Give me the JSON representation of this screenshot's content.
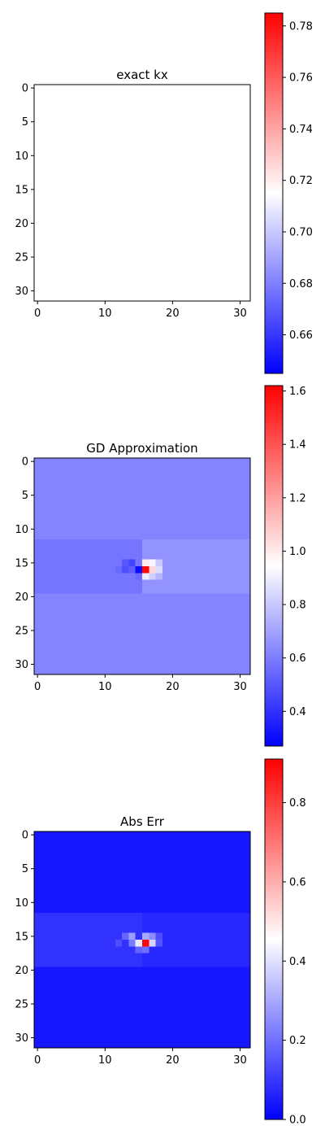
{
  "chart_data": [
    {
      "type": "heatmap",
      "title": "exact kx",
      "rows": 32,
      "cols": 32,
      "x_ticks": [
        0,
        10,
        20,
        30
      ],
      "y_ticks": [
        0,
        5,
        10,
        15,
        20,
        25,
        30
      ],
      "colorbar": {
        "vmin": 0.645,
        "vmax": 0.785,
        "ticks": [
          "0.66",
          "0.68",
          "0.70",
          "0.72",
          "0.74",
          "0.76",
          "0.78"
        ]
      },
      "field": {
        "kind": "uniform",
        "value": 0.715
      }
    },
    {
      "type": "heatmap",
      "title": "GD Approximation",
      "rows": 32,
      "cols": 32,
      "x_ticks": [
        0,
        10,
        20,
        30
      ],
      "y_ticks": [
        0,
        5,
        10,
        15,
        20,
        25,
        30
      ],
      "colorbar": {
        "vmin": 0.27,
        "vmax": 1.62,
        "ticks": [
          "0.4",
          "0.6",
          "0.8",
          "1.0",
          "1.2",
          "1.4",
          "1.6"
        ]
      },
      "field": {
        "kind": "background-with-band",
        "background": 0.62,
        "band_rows": [
          12,
          19
        ],
        "band_left": 0.58,
        "band_right": 0.66,
        "cells": [
          [
            16,
            15,
            0.3
          ],
          [
            16,
            16,
            1.6
          ],
          [
            15,
            16,
            1.0
          ],
          [
            16,
            17,
            1.05
          ],
          [
            15,
            17,
            0.92
          ],
          [
            15,
            14,
            0.45
          ],
          [
            17,
            16,
            0.9
          ],
          [
            17,
            15,
            0.55
          ],
          [
            16,
            14,
            0.52
          ],
          [
            15,
            13,
            0.5
          ],
          [
            16,
            13,
            0.48
          ],
          [
            16,
            12,
            0.55
          ],
          [
            17,
            17,
            0.82
          ],
          [
            15,
            18,
            0.8
          ],
          [
            16,
            18,
            0.85
          ],
          [
            17,
            18,
            0.75
          ]
        ]
      }
    },
    {
      "type": "heatmap",
      "title": "Abs Err",
      "rows": 32,
      "cols": 32,
      "x_ticks": [
        0,
        10,
        20,
        30
      ],
      "y_ticks": [
        0,
        5,
        10,
        15,
        20,
        25,
        30
      ],
      "colorbar": {
        "vmin": 0.0,
        "vmax": 0.91,
        "ticks": [
          "0.0",
          "0.2",
          "0.4",
          "0.6",
          "0.8"
        ]
      },
      "field": {
        "kind": "background-with-band",
        "background": 0.04,
        "band_rows": [
          12,
          19
        ],
        "band_left": 0.09,
        "band_right": 0.07,
        "cells": [
          [
            16,
            16,
            0.9
          ],
          [
            16,
            15,
            0.42
          ],
          [
            15,
            16,
            0.3
          ],
          [
            16,
            17,
            0.38
          ],
          [
            15,
            17,
            0.25
          ],
          [
            15,
            14,
            0.28
          ],
          [
            16,
            14,
            0.22
          ],
          [
            17,
            16,
            0.2
          ],
          [
            17,
            15,
            0.18
          ],
          [
            15,
            13,
            0.18
          ],
          [
            16,
            18,
            0.15
          ],
          [
            15,
            18,
            0.14
          ],
          [
            16,
            12,
            0.14
          ]
        ]
      }
    }
  ]
}
